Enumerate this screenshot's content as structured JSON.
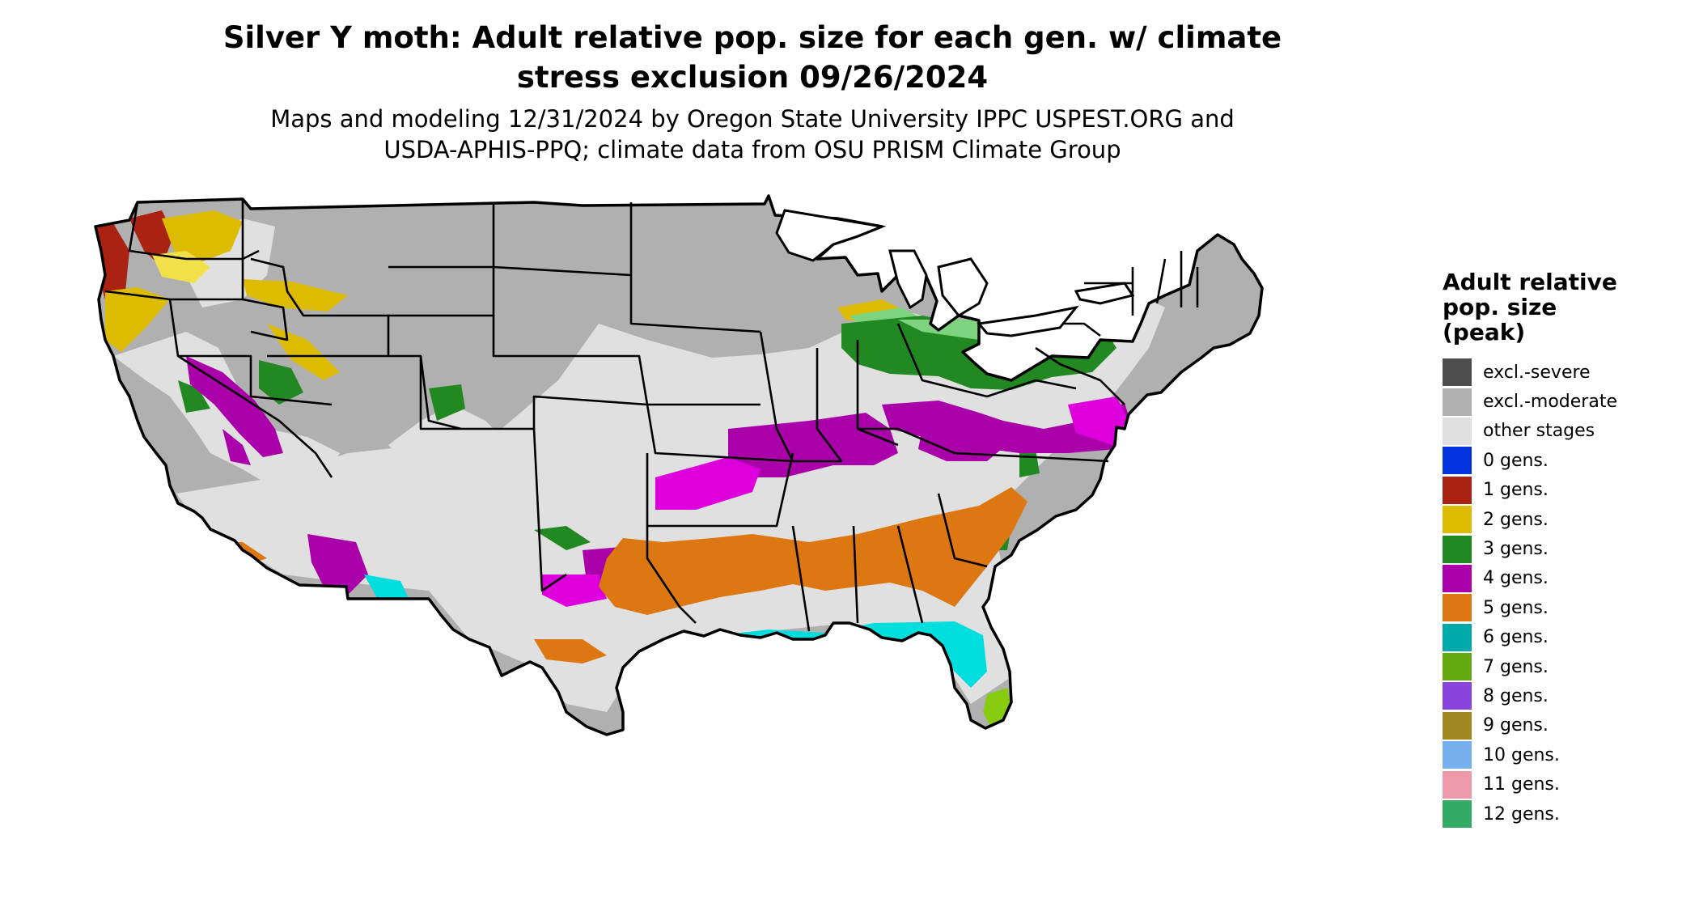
{
  "header": {
    "title_lines": [
      "Silver Y moth: Adult relative pop. size for each gen. w/ climate",
      "stress exclusion 09/26/2024"
    ],
    "subtitle_lines": [
      "Maps and modeling 12/31/2024 by Oregon State University IPPC USPEST.ORG and",
      "USDA-APHIS-PPQ; climate data from OSU PRISM Climate Group"
    ]
  },
  "legend": {
    "title_lines": [
      "Adult relative",
      "pop. size",
      "(peak)"
    ],
    "items": [
      {
        "label": "excl.-severe",
        "color": "#4d4d4d"
      },
      {
        "label": "excl.-moderate",
        "color": "#b0b0b0"
      },
      {
        "label": "other stages",
        "color": "#e0e0e0"
      },
      {
        "label": "0 gens.",
        "color": "#0033dd"
      },
      {
        "label": "1 gens.",
        "color": "#aa2211"
      },
      {
        "label": "2 gens.",
        "color": "#ddbb00"
      },
      {
        "label": "3 gens.",
        "color": "#228822"
      },
      {
        "label": "4 gens.",
        "color": "#aa00aa"
      },
      {
        "label": "5 gens.",
        "color": "#dd7711"
      },
      {
        "label": "6 gens.",
        "color": "#00aaaa"
      },
      {
        "label": "7 gens.",
        "color": "#66aa11"
      },
      {
        "label": "8 gens.",
        "color": "#8844dd"
      },
      {
        "label": "9 gens.",
        "color": "#a08822"
      },
      {
        "label": "10 gens.",
        "color": "#77b0ee"
      },
      {
        "label": "11 gens.",
        "color": "#ee99aa"
      },
      {
        "label": "12 gens.",
        "color": "#33aa66"
      }
    ]
  },
  "map": {
    "palette": {
      "moderate": "#b0b0b0",
      "other": "#e0e0e0",
      "gen1": "#aa2211",
      "gen2": "#ddbb00",
      "gen2_light": "#f2e04a",
      "gen3": "#228822",
      "gen3_light": "#7ed37e",
      "gen4": "#aa00aa",
      "gen4_bright": "#dd00dd",
      "gen5": "#dd7711",
      "gen6": "#00dddd",
      "gen7": "#88cc11",
      "gen8": "#8844dd",
      "severe": "#555555",
      "water": "#ffffff",
      "border": "#000000"
    }
  }
}
